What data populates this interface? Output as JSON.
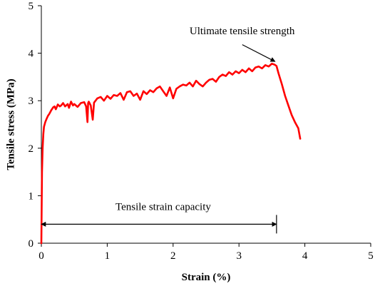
{
  "chart_data": {
    "type": "line",
    "title": "",
    "xlabel": "Strain (%)",
    "ylabel": "Tensile stress (MPa)",
    "xlim": [
      0,
      5
    ],
    "ylim": [
      0,
      5
    ],
    "xticks": [
      0,
      1,
      2,
      3,
      4,
      5
    ],
    "yticks": [
      0,
      1,
      2,
      3,
      4,
      5
    ],
    "xtick_labels": [
      "0",
      "1",
      "2",
      "3",
      "4",
      "5"
    ],
    "ytick_labels": [
      "0",
      "1",
      "2",
      "3",
      "4",
      "5"
    ],
    "grid": false,
    "legend": "none",
    "series": [
      {
        "color": "#ff0000",
        "x": [
          0,
          0.01,
          0.02,
          0.03,
          0.04,
          0.06,
          0.08,
          0.1,
          0.12,
          0.15,
          0.18,
          0.2,
          0.22,
          0.25,
          0.28,
          0.3,
          0.33,
          0.36,
          0.4,
          0.42,
          0.45,
          0.48,
          0.5,
          0.55,
          0.6,
          0.65,
          0.68,
          0.7,
          0.71,
          0.72,
          0.75,
          0.78,
          0.8,
          0.85,
          0.9,
          0.95,
          1.0,
          1.05,
          1.1,
          1.15,
          1.2,
          1.25,
          1.3,
          1.35,
          1.4,
          1.45,
          1.5,
          1.55,
          1.6,
          1.65,
          1.7,
          1.75,
          1.8,
          1.85,
          1.9,
          1.95,
          2.0,
          2.05,
          2.1,
          2.15,
          2.2,
          2.25,
          2.3,
          2.35,
          2.4,
          2.45,
          2.5,
          2.55,
          2.6,
          2.65,
          2.7,
          2.75,
          2.8,
          2.85,
          2.9,
          2.95,
          3.0,
          3.05,
          3.1,
          3.15,
          3.2,
          3.25,
          3.3,
          3.35,
          3.4,
          3.45,
          3.5,
          3.54,
          3.57,
          3.6,
          3.65,
          3.7,
          3.75,
          3.8,
          3.85,
          3.9,
          3.93
        ],
        "y": [
          0,
          1.5,
          2.0,
          2.3,
          2.45,
          2.55,
          2.62,
          2.68,
          2.72,
          2.8,
          2.86,
          2.88,
          2.82,
          2.92,
          2.88,
          2.9,
          2.95,
          2.88,
          2.93,
          2.85,
          2.98,
          2.9,
          2.93,
          2.87,
          2.95,
          2.97,
          2.88,
          2.55,
          2.95,
          2.98,
          2.9,
          2.6,
          2.96,
          3.05,
          3.08,
          3.0,
          3.1,
          3.04,
          3.12,
          3.1,
          3.16,
          3.02,
          3.18,
          3.2,
          3.1,
          3.15,
          3.02,
          3.2,
          3.14,
          3.22,
          3.18,
          3.26,
          3.3,
          3.2,
          3.1,
          3.28,
          3.05,
          3.25,
          3.3,
          3.34,
          3.32,
          3.38,
          3.3,
          3.42,
          3.35,
          3.3,
          3.38,
          3.44,
          3.46,
          3.4,
          3.5,
          3.55,
          3.52,
          3.6,
          3.55,
          3.62,
          3.58,
          3.65,
          3.6,
          3.68,
          3.62,
          3.7,
          3.72,
          3.68,
          3.75,
          3.72,
          3.78,
          3.76,
          3.73,
          3.58,
          3.35,
          3.1,
          2.9,
          2.7,
          2.55,
          2.42,
          2.2
        ]
      }
    ],
    "annotations": [
      {
        "text": "Ultimate tensile strength",
        "point": [
          3.57,
          3.78
        ],
        "label_at": [
          2.25,
          4.4
        ]
      },
      {
        "text": "Tensile strain capacity",
        "span": [
          0,
          3.57
        ],
        "y": 0.4,
        "label_at": [
          1.85,
          0.7
        ]
      }
    ]
  }
}
